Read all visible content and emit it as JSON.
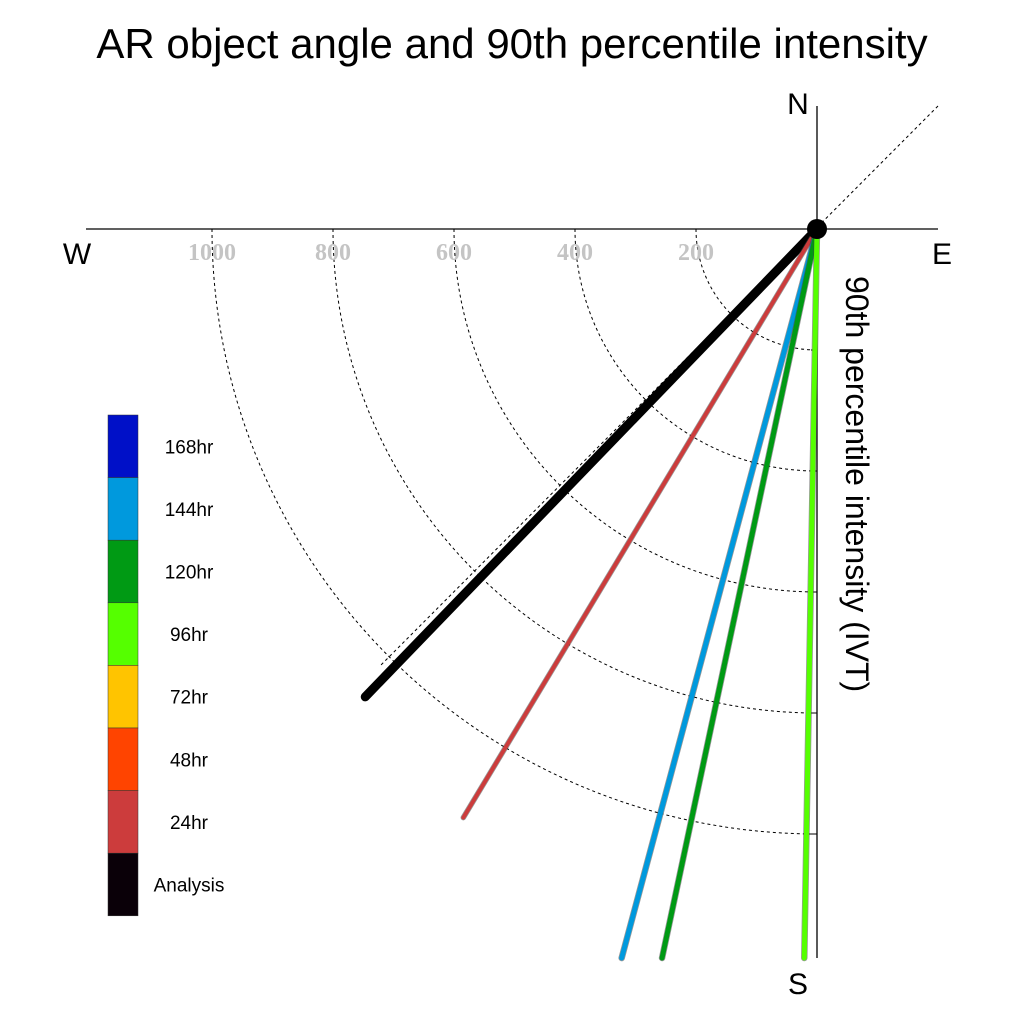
{
  "chart_data": {
    "type": "polar-vector",
    "title": "AR object angle and 90th percentile intensity",
    "radial_label": "90th percentile intensity (IVT)",
    "directions": {
      "n": "N",
      "s": "S",
      "e": "E",
      "w": "W"
    },
    "radial_ticks": [
      200,
      400,
      600,
      800,
      1000
    ],
    "radial_tick_labels": [
      "200",
      "400",
      "600",
      "800",
      "1000"
    ],
    "angle_convention": "degrees clockwise from north",
    "legend_placement": "left",
    "legend": [
      {
        "label": "168hr",
        "color": "#0010c8"
      },
      {
        "label": "144hr",
        "color": "#0099dd"
      },
      {
        "label": "120hr",
        "color": "#009a14"
      },
      {
        "label": "96hr",
        "color": "#55ff00"
      },
      {
        "label": "72hr",
        "color": "#ffc400"
      },
      {
        "label": "48hr",
        "color": "#ff4400"
      },
      {
        "label": "24hr",
        "color": "#cc3c3c"
      },
      {
        "label": "Analysis",
        "color": "#0a0008"
      }
    ],
    "series": [
      {
        "name": "Analysis",
        "angle_deg": 224,
        "intensity": 1075,
        "color": "#000000",
        "width": 9
      },
      {
        "name": "24hr",
        "angle_deg": 211,
        "intensity": 1135,
        "color": "#cc3c3c",
        "width": 4
      },
      {
        "name": "144hr",
        "angle_deg": 195,
        "intensity": 1250,
        "color": "#0099dd",
        "width": 5
      },
      {
        "name": "120hr",
        "angle_deg": 192,
        "intensity": 1250,
        "color": "#009a14",
        "width": 5
      },
      {
        "name": "96hr",
        "angle_deg": 181,
        "intensity": 1210,
        "color": "#55ff00",
        "width": 5
      }
    ]
  }
}
